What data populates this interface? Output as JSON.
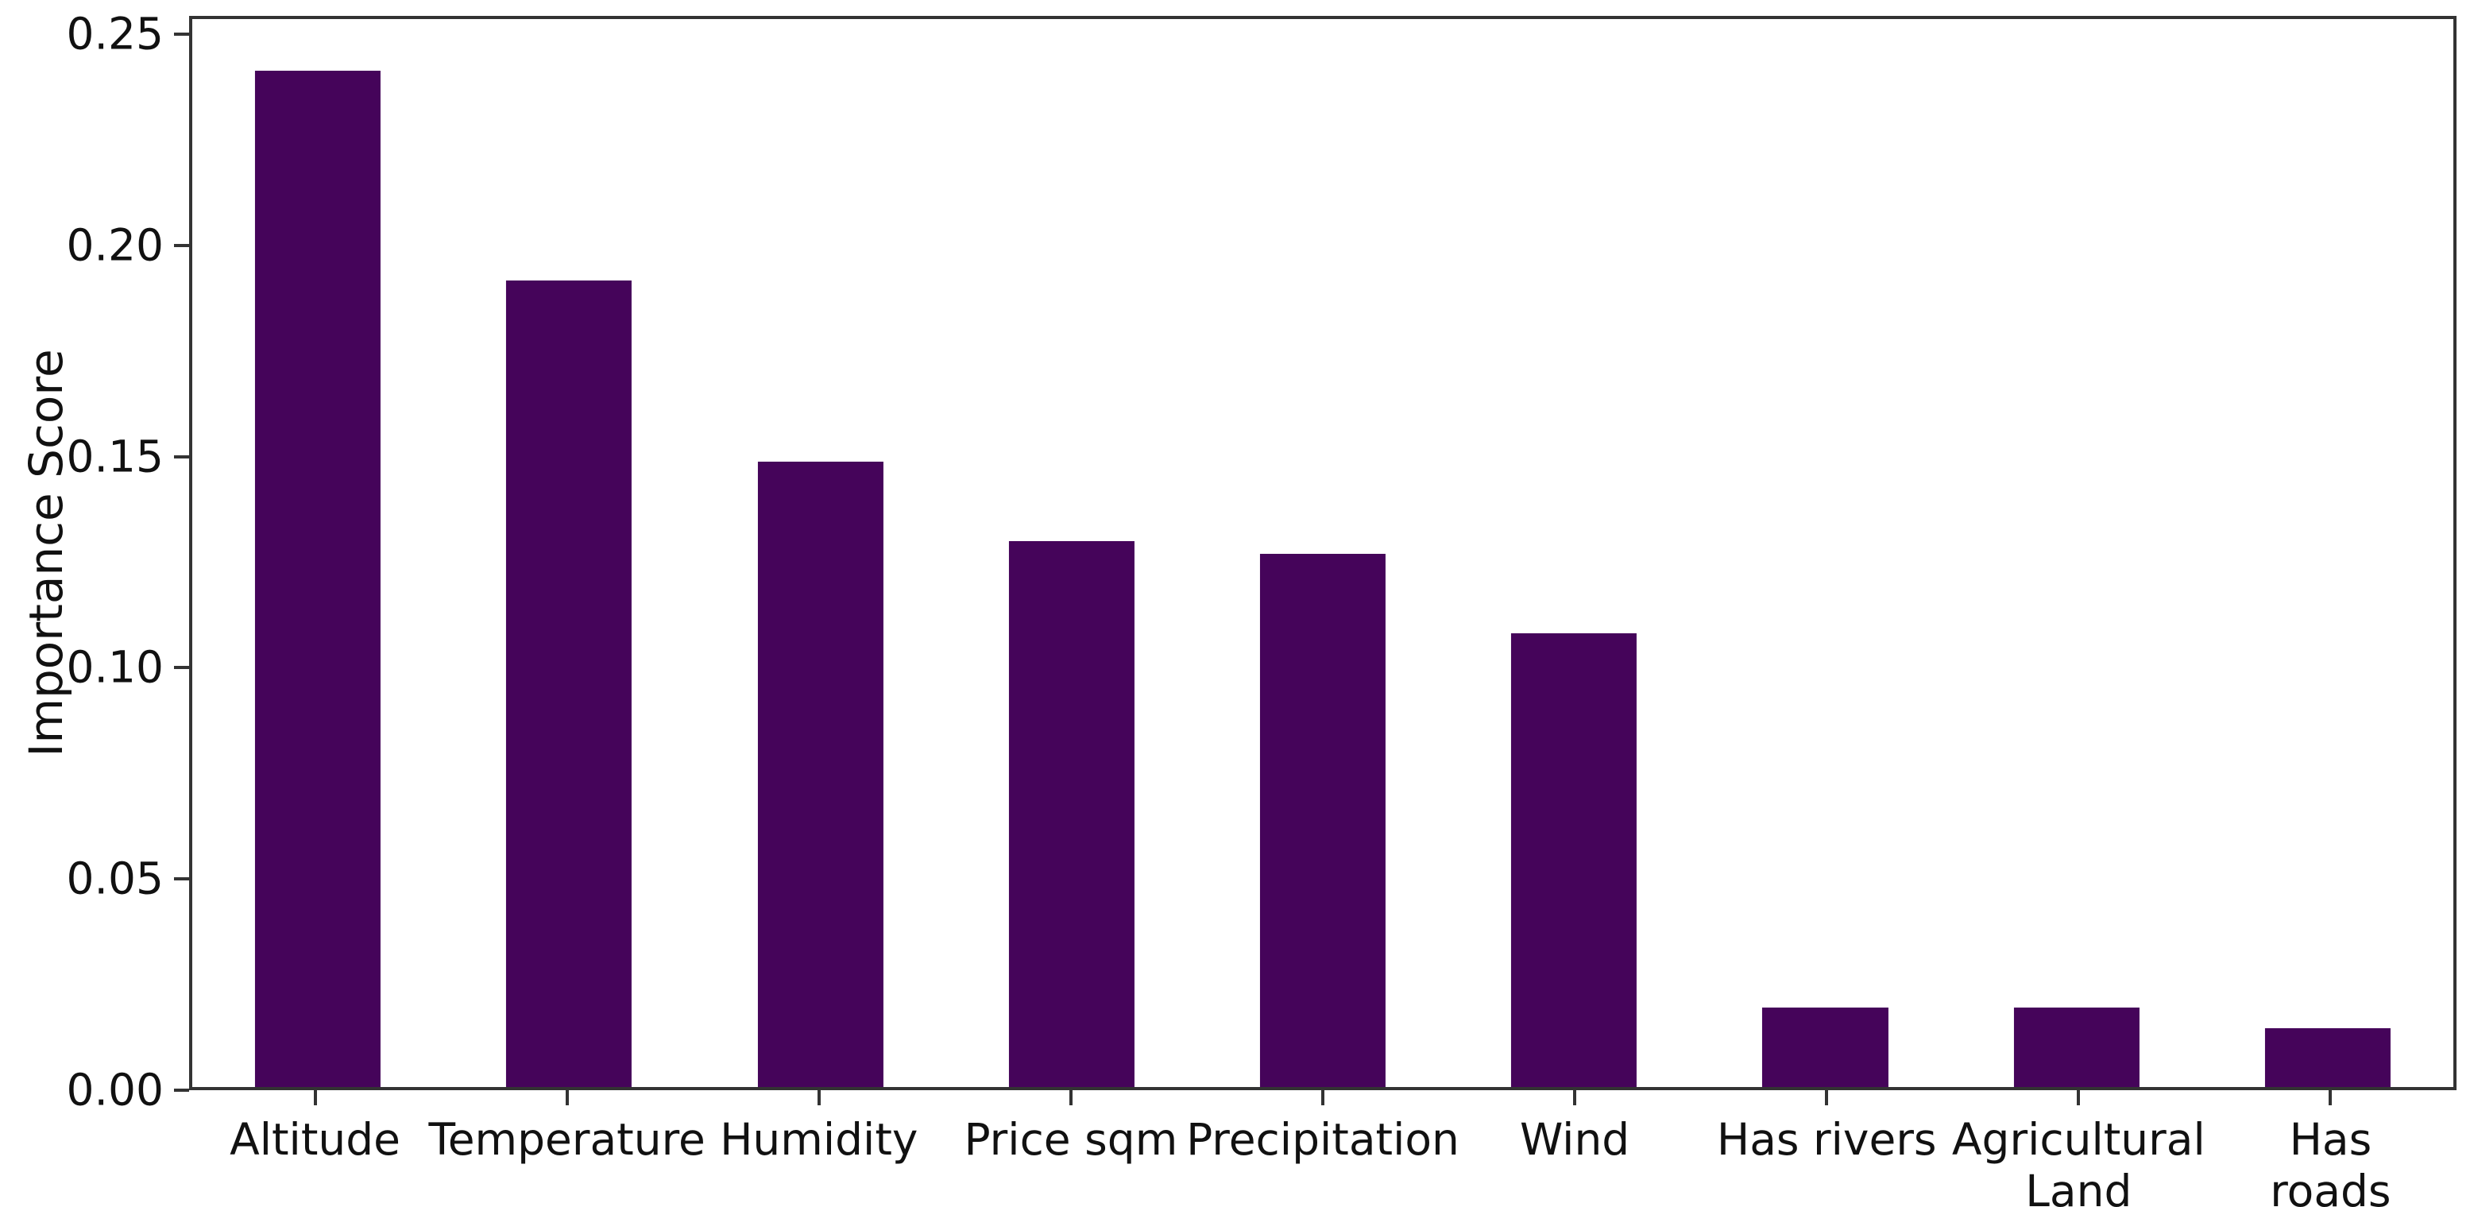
{
  "colors": {
    "bar": "#45045a",
    "spine": "#333333",
    "text": "#111111",
    "background": "#ffffff"
  },
  "chart_data": {
    "type": "bar",
    "categories": [
      "Altitude",
      "Temperature",
      "Humidity",
      "Price sqm",
      "Precipitation",
      "Wind",
      "Has rivers",
      "Agricultural Land",
      "Has roads"
    ],
    "values": [
      0.242,
      0.192,
      0.149,
      0.13,
      0.127,
      0.108,
      0.019,
      0.019,
      0.014
    ],
    "xtick_labels": [
      "Altitude",
      "Temperature",
      "Humidity",
      "Price sqm",
      "Precipitation",
      "Wind",
      "Has rivers",
      "Agricultural\nLand",
      "Has roads"
    ],
    "title": "",
    "xlabel": "",
    "ylabel": "Importance Score",
    "ylim": [
      0,
      0.2543
    ],
    "yticks": [
      0.0,
      0.05,
      0.1,
      0.15,
      0.2,
      0.25
    ],
    "ytick_labels": [
      "0.00",
      "0.05",
      "0.10",
      "0.15",
      "0.20",
      "0.25"
    ],
    "bar_width_fraction": 0.5,
    "grid": false,
    "legend": null,
    "spines": "box"
  }
}
